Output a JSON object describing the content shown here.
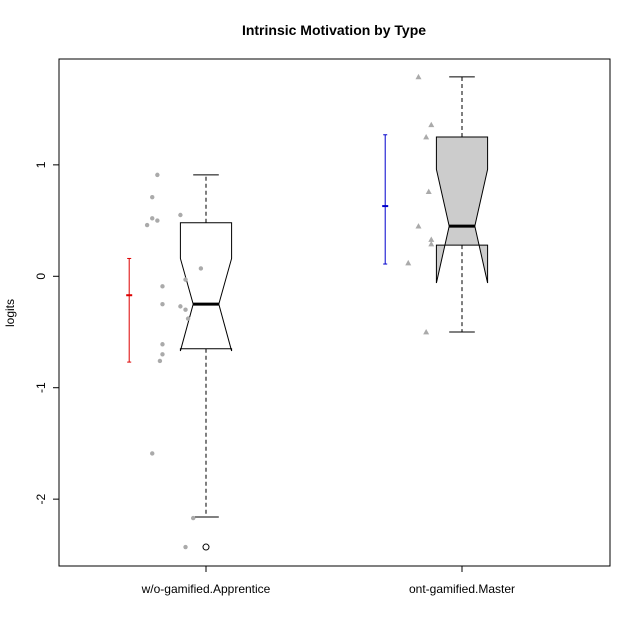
{
  "chart_data": {
    "type": "boxplot",
    "title": "Intrinsic Motivation by Type",
    "xlabel": "",
    "ylabel": "logits",
    "ylim": [
      -2.6,
      1.95
    ],
    "yticks": [
      -2,
      -1,
      0,
      1
    ],
    "ytick_labels": [
      "-2",
      "-1",
      "0",
      "1"
    ],
    "categories": [
      "w/o-gamified.Apprentice",
      "ont-gamified.Master"
    ],
    "boxes": [
      {
        "category": "w/o-gamified.Apprentice",
        "whisker_low": -2.16,
        "q1": -0.65,
        "median": -0.25,
        "q3": 0.48,
        "whisker_high": 0.91,
        "notch_low": -0.67,
        "notch_high": 0.16,
        "outliers": [
          -2.43
        ],
        "fill": "#ffffff"
      },
      {
        "category": "ont-gamified.Master",
        "whisker_low": -0.5,
        "q1": 0.28,
        "median": 0.45,
        "q3": 1.25,
        "whisker_high": 1.79,
        "notch_low": -0.06,
        "notch_high": 0.96,
        "outliers": [],
        "fill": "#cccccc"
      }
    ],
    "mean_ci": [
      {
        "category": "w/o-gamified.Apprentice",
        "mean": -0.17,
        "low": -0.77,
        "high": 0.16,
        "color": "#dd0000"
      },
      {
        "category": "ont-gamified.Master",
        "mean": 0.63,
        "low": 0.11,
        "high": 1.27,
        "color": "#0000cc"
      }
    ],
    "jitter_points": [
      {
        "category": "w/o-gamified.Apprentice",
        "shape": "circle",
        "color": "#aaaaaa",
        "points": [
          {
            "dx": -0.19,
            "y": 0.91
          },
          {
            "dx": -0.21,
            "y": 0.71
          },
          {
            "dx": -0.21,
            "y": 0.52
          },
          {
            "dx": -0.19,
            "y": 0.5
          },
          {
            "dx": -0.23,
            "y": 0.46
          },
          {
            "dx": -0.1,
            "y": 0.55
          },
          {
            "dx": -0.02,
            "y": 0.07
          },
          {
            "dx": -0.08,
            "y": -0.03
          },
          {
            "dx": -0.17,
            "y": -0.09
          },
          {
            "dx": -0.17,
            "y": -0.25
          },
          {
            "dx": -0.1,
            "y": -0.27
          },
          {
            "dx": -0.08,
            "y": -0.3
          },
          {
            "dx": -0.07,
            "y": -0.38
          },
          {
            "dx": -0.17,
            "y": -0.61
          },
          {
            "dx": -0.17,
            "y": -0.7
          },
          {
            "dx": -0.18,
            "y": -0.76
          },
          {
            "dx": -0.21,
            "y": -1.59
          },
          {
            "dx": -0.05,
            "y": -2.17
          },
          {
            "dx": -0.08,
            "y": -2.43
          }
        ]
      },
      {
        "category": "ont-gamified.Master",
        "shape": "triangle",
        "color": "#aaaaaa",
        "points": [
          {
            "dx": -0.17,
            "y": 1.79
          },
          {
            "dx": -0.12,
            "y": 1.36
          },
          {
            "dx": -0.14,
            "y": 1.25
          },
          {
            "dx": -0.13,
            "y": 0.76
          },
          {
            "dx": -0.17,
            "y": 0.45
          },
          {
            "dx": -0.12,
            "y": 0.33
          },
          {
            "dx": -0.12,
            "y": 0.29
          },
          {
            "dx": -0.21,
            "y": 0.12
          },
          {
            "dx": -0.14,
            "y": -0.5
          }
        ]
      }
    ],
    "grid": false,
    "legend": "none"
  }
}
